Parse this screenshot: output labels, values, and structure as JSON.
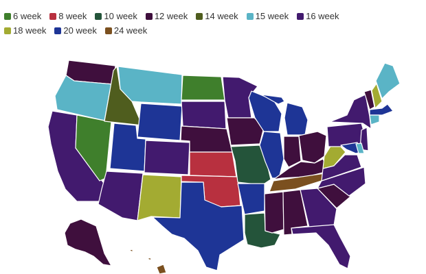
{
  "legend": [
    {
      "key": "w6",
      "label": "6 week",
      "color": "#3f7f2c"
    },
    {
      "key": "w8",
      "label": "8 week",
      "color": "#b8303f"
    },
    {
      "key": "w10",
      "label": "10 week",
      "color": "#24543a"
    },
    {
      "key": "w12",
      "label": "12 week",
      "color": "#3f0f3d"
    },
    {
      "key": "w14",
      "label": "14 week",
      "color": "#4f5d1e"
    },
    {
      "key": "w15",
      "label": "15 week",
      "color": "#5ab4c6"
    },
    {
      "key": "w16",
      "label": "16 week",
      "color": "#421a6e"
    },
    {
      "key": "w18",
      "label": "18 week",
      "color": "#a3ab32"
    },
    {
      "key": "w20",
      "label": "20 week",
      "color": "#1e3596"
    },
    {
      "key": "w24",
      "label": "24 week",
      "color": "#7b501f"
    }
  ],
  "states": {
    "WA": "w12",
    "OR": "w15",
    "CA": "w16",
    "NV": "w6",
    "ID": "w14",
    "MT": "w15",
    "WY": "w20",
    "UT": "w20",
    "AZ": "w16",
    "CO": "w16",
    "NM": "w18",
    "ND": "w6",
    "SD": "w16",
    "NE": "w12",
    "KS": "w8",
    "OK": "w8",
    "TX": "w20",
    "MN": "w16",
    "IA": "w12",
    "MO": "w10",
    "AR": "w20",
    "LA": "w10",
    "WI": "w20",
    "IL": "w20",
    "MI": "w20",
    "IN": "w12",
    "OH": "w12",
    "KY": "w12",
    "TN": "w24",
    "MS": "w12",
    "AL": "w12",
    "GA": "w16",
    "FL": "w16",
    "SC": "w12",
    "NC": "w16",
    "VA": "w16",
    "WV": "w18",
    "PA": "w16",
    "NY": "w16",
    "VT": "w12",
    "NH": "w18",
    "ME": "w15",
    "MA": "w20",
    "CT": "w15",
    "NJ": "w16",
    "MD": "w20",
    "DE": "w15",
    "AK": "w12",
    "HI": "w24"
  }
}
